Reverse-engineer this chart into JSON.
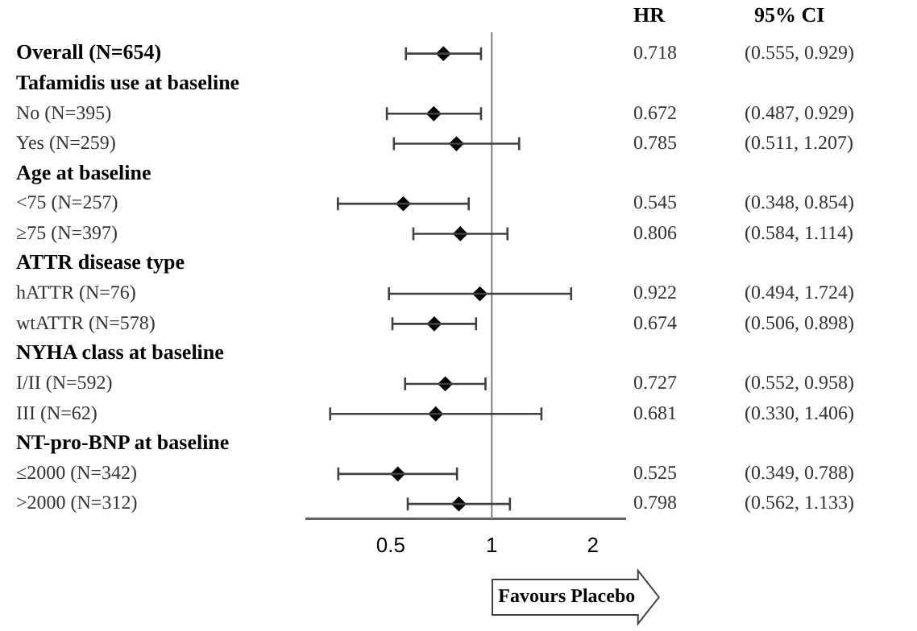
{
  "chart_data": {
    "type": "scatter",
    "orientation": "horizontal",
    "log": "x",
    "grid": false,
    "legend": false,
    "marker": "diamond",
    "data_labels": true,
    "tick_labels": "x",
    "categories": [
      "Overall (N=654)",
      "Tafamidis use at baseline",
      "No (N=395)",
      "Yes (N=259)",
      "Age at baseline",
      "<75 (N=257)",
      "≥75 (N=397)",
      "ATTR disease type",
      "hATTR (N=76)",
      "wtATTR (N=578)",
      "NYHA class at baseline",
      "I/II (N=592)",
      "III (N=62)",
      "NT-pro-BNP at baseline",
      "≤2000 (N=342)",
      ">2000 (N=312)"
    ],
    "series": [
      {
        "color": "#000000",
        "values": [
          0.718,
          null,
          0.672,
          0.785,
          null,
          0.545,
          0.806,
          null,
          0.922,
          0.674,
          null,
          0.727,
          0.681,
          null,
          0.525,
          0.798
        ],
        "errors": [
          [
            0.555,
            0.929
          ],
          null,
          [
            0.487,
            0.929
          ],
          [
            0.511,
            1.207
          ],
          null,
          [
            0.348,
            0.854
          ],
          [
            0.584,
            1.114
          ],
          null,
          [
            0.494,
            1.724
          ],
          [
            0.506,
            0.898
          ],
          null,
          [
            0.552,
            0.958
          ],
          [
            0.33,
            1.406
          ],
          null,
          [
            0.349,
            0.788
          ],
          [
            0.562,
            1.133
          ]
        ]
      }
    ],
    "xlim": [
      0.28,
      2.5
    ],
    "xticks": [
      0.5,
      1,
      2
    ],
    "ref_lines": [
      {
        "axis": "x",
        "value": 1,
        "color": "#808080"
      }
    ],
    "annotations": [
      "HR",
      "95% CI",
      "Favours Placebo",
      "(0.555, 0.929)",
      "(0.487, 0.929)",
      "(0.511, 1.207)",
      "(0.348, 0.854)",
      "(0.584, 1.114)",
      "(0.494, 1.724)",
      "(0.506, 0.898)",
      "(0.552, 0.958)",
      "(0.330, 1.406)",
      "(0.349, 0.788)",
      "(0.562, 1.133)"
    ]
  }
}
